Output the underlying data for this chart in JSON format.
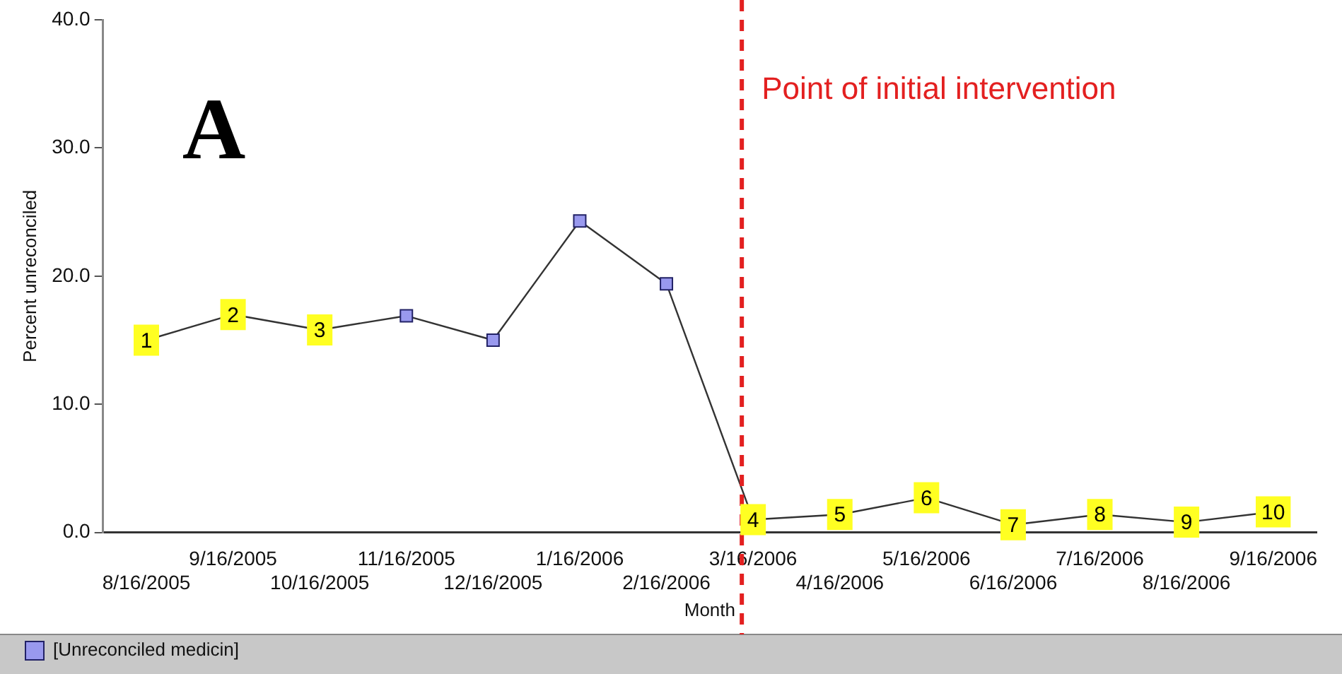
{
  "chart_data": {
    "type": "line",
    "xlabel": "Month",
    "ylabel": "Percent unreconciled",
    "categories": [
      "8/16/2005",
      "9/16/2005",
      "10/16/2005",
      "11/16/2005",
      "12/16/2005",
      "1/16/2006",
      "2/16/2006",
      "3/16/2006",
      "4/16/2006",
      "5/16/2006",
      "6/16/2006",
      "7/16/2006",
      "8/16/2006",
      "9/16/2006"
    ],
    "series": [
      {
        "name": "[Unreconciled medicin]",
        "color": "#9999ee",
        "values": [
          15.0,
          17.0,
          15.8,
          16.9,
          15.0,
          24.3,
          19.4,
          1.0,
          1.4,
          2.7,
          0.6,
          1.4,
          0.8,
          1.6
        ]
      }
    ],
    "ylim": [
      0,
      40
    ],
    "yticks": [
      {
        "value": 0,
        "label": "0.0"
      },
      {
        "value": 10,
        "label": "10.0"
      },
      {
        "value": 20,
        "label": "20.0"
      },
      {
        "value": 30,
        "label": "30.0"
      },
      {
        "value": 40,
        "label": "40.0"
      }
    ],
    "grid": false,
    "legend": "bottom",
    "marker": "square",
    "line_style": "solid",
    "ref_lines": [
      {
        "axis": "x",
        "value": "3/16/2006",
        "label": "Point of initial intervention",
        "color": "#e32020",
        "line_style": "dashed"
      }
    ],
    "annotations": [
      "A",
      {
        "text": "1",
        "x": "8/16/2005",
        "y": 15.0
      },
      {
        "text": "2",
        "x": "9/16/2005",
        "y": 17.0
      },
      {
        "text": "3",
        "x": "10/16/2005",
        "y": 15.8
      },
      {
        "text": "4",
        "x": "3/16/2006",
        "y": 1.0
      },
      {
        "text": "5",
        "x": "4/16/2006",
        "y": 1.4
      },
      {
        "text": "6",
        "x": "5/16/2006",
        "y": 2.7
      },
      {
        "text": "7",
        "x": "6/16/2006",
        "y": 0.6
      },
      {
        "text": "8",
        "x": "7/16/2006",
        "y": 1.4
      },
      {
        "text": "9",
        "x": "8/16/2006",
        "y": 0.8
      },
      {
        "text": "10",
        "x": "9/16/2006",
        "y": 1.6
      }
    ]
  }
}
